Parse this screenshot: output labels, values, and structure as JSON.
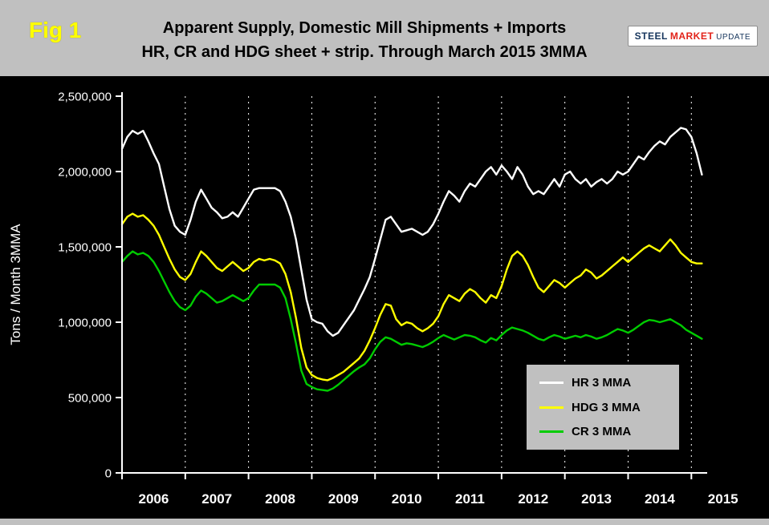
{
  "figure": {
    "label": "Fig 1"
  },
  "title": {
    "line1": "Apparent Supply, Domestic Mill Shipments + Imports",
    "line2": "HR, CR and HDG sheet + strip. Through March 2015 3MMA"
  },
  "logo": {
    "part1": "STEEL",
    "part2": "MARKET",
    "part3": "UPDATE"
  },
  "y_axis_label": "Tons / Month 3MMA",
  "colors": {
    "background": "#000000",
    "header_panel": "#c0c0c0",
    "fig_label": "#ffff00",
    "axis_text": "#ffffff",
    "hr_line": "#ffffff",
    "hdg_line": "#ffff00",
    "cr_line": "#00cc00"
  },
  "legend": {
    "items": [
      {
        "label": "HR 3 MMA",
        "color": "#ffffff"
      },
      {
        "label": "HDG 3 MMA",
        "color": "#ffff00"
      },
      {
        "label": "CR 3 MMA",
        "color": "#00cc00"
      }
    ]
  },
  "chart_data": {
    "type": "line",
    "title": "Apparent Supply, Domestic Mill Shipments + Imports — HR, CR and HDG sheet + strip. Through March 2015 3MMA",
    "ylabel": "Tons / Month 3MMA",
    "x_unit": "month",
    "x_start": "2006-01",
    "x_end": "2015-03",
    "ylim": [
      0,
      2500000
    ],
    "grid": "vertical-dashed-yearly",
    "legend_position": "inside-lower-right",
    "year_labels": [
      "2006",
      "2007",
      "2008",
      "2009",
      "2010",
      "2011",
      "2012",
      "2013",
      "2014",
      "2015"
    ],
    "y_ticks": [
      "0",
      "500,000",
      "1,000,000",
      "1,500,000",
      "2,000,000",
      "2,500,000"
    ],
    "series": [
      {
        "name": "HR 3 MMA",
        "color": "#ffffff",
        "values": [
          2150000,
          2230000,
          2270000,
          2250000,
          2270000,
          2200000,
          2120000,
          2050000,
          1900000,
          1750000,
          1640000,
          1600000,
          1580000,
          1680000,
          1800000,
          1880000,
          1820000,
          1760000,
          1730000,
          1690000,
          1700000,
          1730000,
          1700000,
          1760000,
          1820000,
          1880000,
          1890000,
          1890000,
          1890000,
          1890000,
          1870000,
          1800000,
          1700000,
          1550000,
          1350000,
          1150000,
          1020000,
          1000000,
          990000,
          940000,
          910000,
          930000,
          980000,
          1030000,
          1080000,
          1150000,
          1220000,
          1300000,
          1420000,
          1550000,
          1680000,
          1700000,
          1650000,
          1600000,
          1610000,
          1620000,
          1600000,
          1580000,
          1600000,
          1650000,
          1720000,
          1800000,
          1870000,
          1840000,
          1800000,
          1870000,
          1920000,
          1900000,
          1950000,
          2000000,
          2030000,
          1980000,
          2040000,
          2000000,
          1950000,
          2030000,
          1980000,
          1900000,
          1850000,
          1870000,
          1850000,
          1900000,
          1950000,
          1900000,
          1980000,
          2000000,
          1950000,
          1920000,
          1950000,
          1900000,
          1930000,
          1950000,
          1920000,
          1950000,
          2000000,
          1980000,
          2000000,
          2050000,
          2100000,
          2080000,
          2130000,
          2170000,
          2200000,
          2180000,
          2230000,
          2260000,
          2290000,
          2280000,
          2230000,
          2120000,
          1980000
        ]
      },
      {
        "name": "HDG 3 MMA",
        "color": "#ffff00",
        "values": [
          1650000,
          1700000,
          1720000,
          1700000,
          1710000,
          1680000,
          1640000,
          1580000,
          1500000,
          1420000,
          1350000,
          1300000,
          1280000,
          1320000,
          1400000,
          1470000,
          1440000,
          1400000,
          1360000,
          1340000,
          1370000,
          1400000,
          1370000,
          1340000,
          1360000,
          1400000,
          1420000,
          1410000,
          1420000,
          1410000,
          1390000,
          1320000,
          1200000,
          1030000,
          830000,
          700000,
          650000,
          630000,
          620000,
          615000,
          630000,
          650000,
          670000,
          700000,
          730000,
          760000,
          810000,
          880000,
          960000,
          1050000,
          1120000,
          1110000,
          1020000,
          980000,
          1000000,
          990000,
          960000,
          940000,
          960000,
          990000,
          1040000,
          1120000,
          1180000,
          1160000,
          1140000,
          1190000,
          1220000,
          1200000,
          1160000,
          1130000,
          1180000,
          1160000,
          1240000,
          1350000,
          1440000,
          1470000,
          1440000,
          1380000,
          1300000,
          1230000,
          1200000,
          1240000,
          1280000,
          1260000,
          1230000,
          1260000,
          1290000,
          1310000,
          1350000,
          1330000,
          1290000,
          1310000,
          1340000,
          1370000,
          1400000,
          1430000,
          1400000,
          1430000,
          1460000,
          1490000,
          1510000,
          1490000,
          1470000,
          1510000,
          1550000,
          1510000,
          1460000,
          1430000,
          1400000,
          1390000,
          1390000
        ]
      },
      {
        "name": "CR 3 MMA",
        "color": "#00cc00",
        "values": [
          1400000,
          1440000,
          1470000,
          1450000,
          1460000,
          1440000,
          1400000,
          1340000,
          1270000,
          1200000,
          1140000,
          1100000,
          1080000,
          1110000,
          1170000,
          1210000,
          1190000,
          1160000,
          1130000,
          1140000,
          1160000,
          1180000,
          1160000,
          1140000,
          1160000,
          1210000,
          1250000,
          1250000,
          1250000,
          1250000,
          1230000,
          1160000,
          1020000,
          860000,
          680000,
          590000,
          570000,
          555000,
          550000,
          545000,
          560000,
          585000,
          615000,
          645000,
          675000,
          700000,
          720000,
          760000,
          820000,
          870000,
          900000,
          890000,
          870000,
          850000,
          860000,
          855000,
          845000,
          835000,
          850000,
          870000,
          895000,
          915000,
          900000,
          885000,
          900000,
          915000,
          910000,
          900000,
          880000,
          865000,
          895000,
          880000,
          915000,
          945000,
          965000,
          955000,
          945000,
          930000,
          910000,
          890000,
          880000,
          900000,
          915000,
          905000,
          890000,
          900000,
          910000,
          900000,
          915000,
          905000,
          890000,
          900000,
          915000,
          935000,
          955000,
          945000,
          930000,
          950000,
          975000,
          1000000,
          1015000,
          1010000,
          1000000,
          1010000,
          1020000,
          1000000,
          980000,
          950000,
          930000,
          910000,
          890000
        ]
      }
    ]
  }
}
